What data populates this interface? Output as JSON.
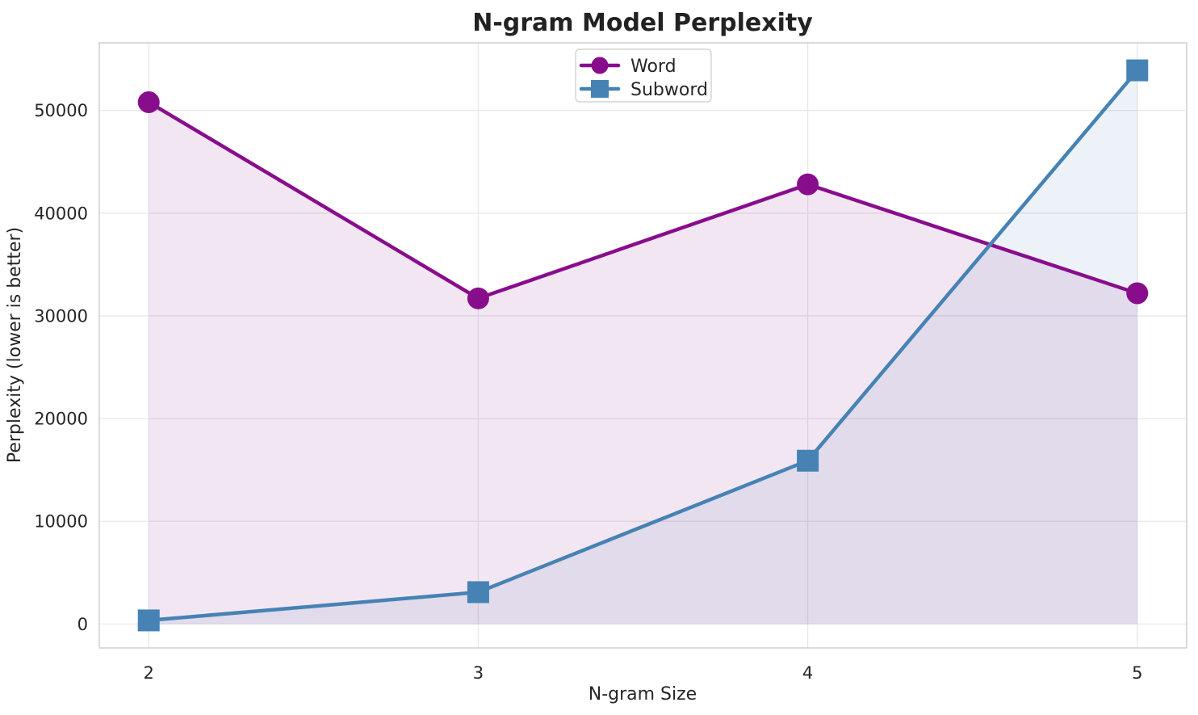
{
  "chart_data": {
    "type": "line",
    "title": "N-gram Model Perplexity",
    "xlabel": "N-gram Size",
    "ylabel": "Perplexity (lower is better)",
    "x": [
      2,
      3,
      4,
      5
    ],
    "x_ticks": [
      "2",
      "3",
      "4",
      "5"
    ],
    "y_ticks": [
      0,
      10000,
      20000,
      30000,
      40000,
      50000
    ],
    "series": [
      {
        "name": "Word",
        "values": [
          50800,
          31700,
          42800,
          32200
        ],
        "color": "#880d8d",
        "marker": "circle"
      },
      {
        "name": "Subword",
        "values": [
          350,
          3100,
          15900,
          53900
        ],
        "color": "#4682b4",
        "marker": "square"
      }
    ],
    "xlim": [
      1.85,
      5.15
    ],
    "ylim": [
      -2330,
      56580
    ],
    "grid": true,
    "area_fill": true,
    "fill_opacity": 0.1,
    "legend_position": "top-center",
    "colors": {
      "grid": "#e8e8e8",
      "spine": "#cfcfcf",
      "text": "#262626",
      "background": "#ffffff"
    }
  }
}
